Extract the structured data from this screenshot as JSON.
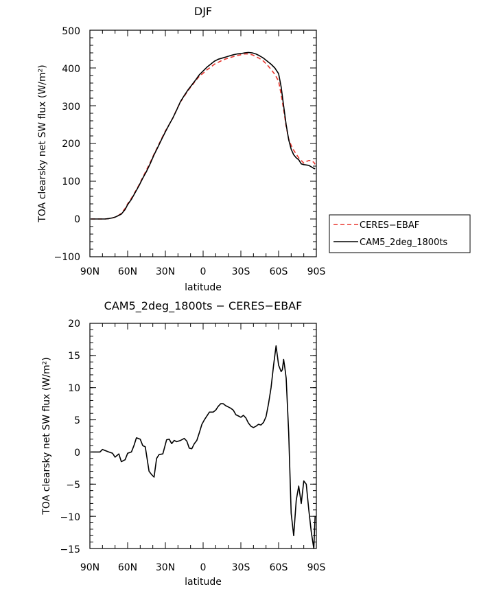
{
  "chart_data": [
    {
      "type": "line",
      "title": "DJF",
      "xlabel": "latitude",
      "ylabel": "TOA clearsky net SW flux (W/m²)",
      "xlim": [
        -90,
        90
      ],
      "ylim": [
        -100,
        500
      ],
      "xticks": [
        -90,
        -60,
        -30,
        0,
        30,
        60,
        90
      ],
      "xtick_labels": [
        "90N",
        "60N",
        "30N",
        "0",
        "30S",
        "60S",
        "90S"
      ],
      "yticks": [
        -100,
        0,
        100,
        200,
        300,
        400,
        500
      ],
      "ytick_labels": [
        "−100",
        "0",
        "100",
        "200",
        "300",
        "400",
        "500"
      ],
      "legend": [
        "CERES−EBAF",
        "CAM5_2deg_1800ts"
      ],
      "series": [
        {
          "name": "CERES−EBAF",
          "color": "#e8352d",
          "dash": "dashed",
          "x": [
            -89,
            -85,
            -80,
            -78,
            -75,
            -72,
            -70,
            -68,
            -65,
            -62,
            -60,
            -57,
            -54,
            -51,
            -48,
            -45,
            -42,
            -39,
            -36,
            -33,
            -30,
            -27,
            -24,
            -21,
            -18,
            -15,
            -12,
            -9,
            -6,
            -3,
            0,
            3,
            6,
            9,
            12,
            15,
            18,
            21,
            24,
            27,
            30,
            33,
            36,
            39,
            42,
            45,
            48,
            51,
            54,
            57,
            60,
            62,
            64,
            66,
            68,
            70,
            72,
            74,
            76,
            78,
            80,
            82,
            84,
            86,
            88,
            89
          ],
          "y": [
            0,
            0,
            0,
            0,
            1,
            3,
            5,
            8,
            15,
            28,
            40,
            55,
            72,
            90,
            110,
            130,
            150,
            172,
            192,
            213,
            233,
            250,
            268,
            290,
            310,
            325,
            340,
            353,
            366,
            378,
            386,
            395,
            402,
            410,
            415,
            420,
            424,
            427,
            430,
            433,
            435,
            437,
            437,
            435,
            430,
            425,
            418,
            408,
            396,
            383,
            365,
            330,
            290,
            245,
            212,
            195,
            182,
            172,
            162,
            155,
            148,
            152,
            155,
            155,
            150,
            145
          ]
        },
        {
          "name": "CAM5_2deg_1800ts",
          "color": "#000000",
          "dash": "solid",
          "x": [
            -89,
            -85,
            -80,
            -78,
            -75,
            -72,
            -70,
            -68,
            -65,
            -62,
            -60,
            -57,
            -54,
            -51,
            -48,
            -45,
            -42,
            -39,
            -36,
            -33,
            -30,
            -27,
            -24,
            -21,
            -18,
            -15,
            -12,
            -9,
            -6,
            -3,
            0,
            3,
            6,
            9,
            12,
            15,
            18,
            21,
            24,
            27,
            30,
            33,
            36,
            39,
            42,
            45,
            48,
            51,
            54,
            57,
            60,
            62,
            64,
            66,
            68,
            70,
            72,
            74,
            76,
            78,
            80,
            82,
            84,
            86,
            88,
            89
          ],
          "y": [
            0,
            0,
            0,
            0,
            1,
            3,
            5,
            8,
            13,
            25,
            38,
            52,
            70,
            88,
            108,
            126,
            147,
            170,
            190,
            211,
            231,
            250,
            268,
            289,
            311,
            327,
            342,
            355,
            368,
            382,
            392,
            402,
            410,
            418,
            423,
            426,
            429,
            432,
            435,
            437,
            438,
            440,
            441,
            440,
            437,
            432,
            426,
            418,
            410,
            400,
            385,
            350,
            300,
            250,
            210,
            185,
            170,
            162,
            157,
            146,
            144,
            143,
            142,
            138,
            134,
            133
          ]
        }
      ]
    },
    {
      "type": "line",
      "title": "CAM5_2deg_1800ts − CERES−EBAF",
      "xlabel": "latitude",
      "ylabel": "TOA clearsky net SW flux (W/m²)",
      "xlim": [
        -90,
        90
      ],
      "ylim": [
        -15,
        20
      ],
      "xticks": [
        -90,
        -60,
        -30,
        0,
        30,
        60,
        90
      ],
      "xtick_labels": [
        "90N",
        "60N",
        "30N",
        "0",
        "30S",
        "60S",
        "90S"
      ],
      "yticks": [
        -15,
        -10,
        -5,
        0,
        5,
        10,
        15,
        20
      ],
      "ytick_labels": [
        "−15",
        "−10",
        "−5",
        "0",
        "5",
        "10",
        "15",
        "20"
      ],
      "series": [
        {
          "name": "CAM5_2deg_1800ts − CERES−EBAF",
          "color": "#000000",
          "dash": "solid",
          "x": [
            -89,
            -82,
            -80,
            -75,
            -72,
            -70,
            -67,
            -65,
            -62,
            -60,
            -57,
            -55,
            -53,
            -50,
            -48,
            -46,
            -43,
            -41,
            -39,
            -37,
            -35,
            -32,
            -29,
            -27,
            -25,
            -23,
            -21,
            -18,
            -15,
            -13,
            -11,
            -9,
            -7,
            -5,
            -3,
            -1,
            1,
            3,
            5,
            8,
            10,
            12,
            14,
            16,
            18,
            20,
            22,
            24,
            26,
            28,
            30,
            32,
            34,
            36,
            38,
            40,
            42,
            44,
            46,
            48,
            50,
            52,
            54,
            56,
            58,
            60,
            62,
            63,
            64,
            65,
            66,
            68,
            70,
            72,
            74,
            76,
            78,
            80,
            82,
            84,
            86,
            88,
            89
          ],
          "y": [
            0,
            0,
            0.4,
            0,
            -0.2,
            -0.8,
            -0.3,
            -1.5,
            -1.2,
            -0.2,
            0,
            1,
            2.2,
            2,
            1,
            0.8,
            -3,
            -3.5,
            -3.9,
            -1,
            -0.4,
            -0.3,
            1.9,
            2,
            1.3,
            1.8,
            1.6,
            1.8,
            2.1,
            1.7,
            0.6,
            0.5,
            1.3,
            1.8,
            3,
            4.3,
            5,
            5.6,
            6.2,
            6.2,
            6.5,
            7.1,
            7.5,
            7.5,
            7.2,
            7,
            6.8,
            6.5,
            5.8,
            5.6,
            5.4,
            5.7,
            5.3,
            4.5,
            4,
            3.8,
            4,
            4.3,
            4.2,
            4.6,
            5.5,
            7.5,
            10,
            13.5,
            16.5,
            13.5,
            12.5,
            12.8,
            14.4,
            13,
            11.5,
            3,
            -9.5,
            -13,
            -7.5,
            -5.3,
            -8,
            -4.5,
            -5,
            -9,
            -12.5,
            -15,
            -10
          ]
        }
      ]
    }
  ]
}
